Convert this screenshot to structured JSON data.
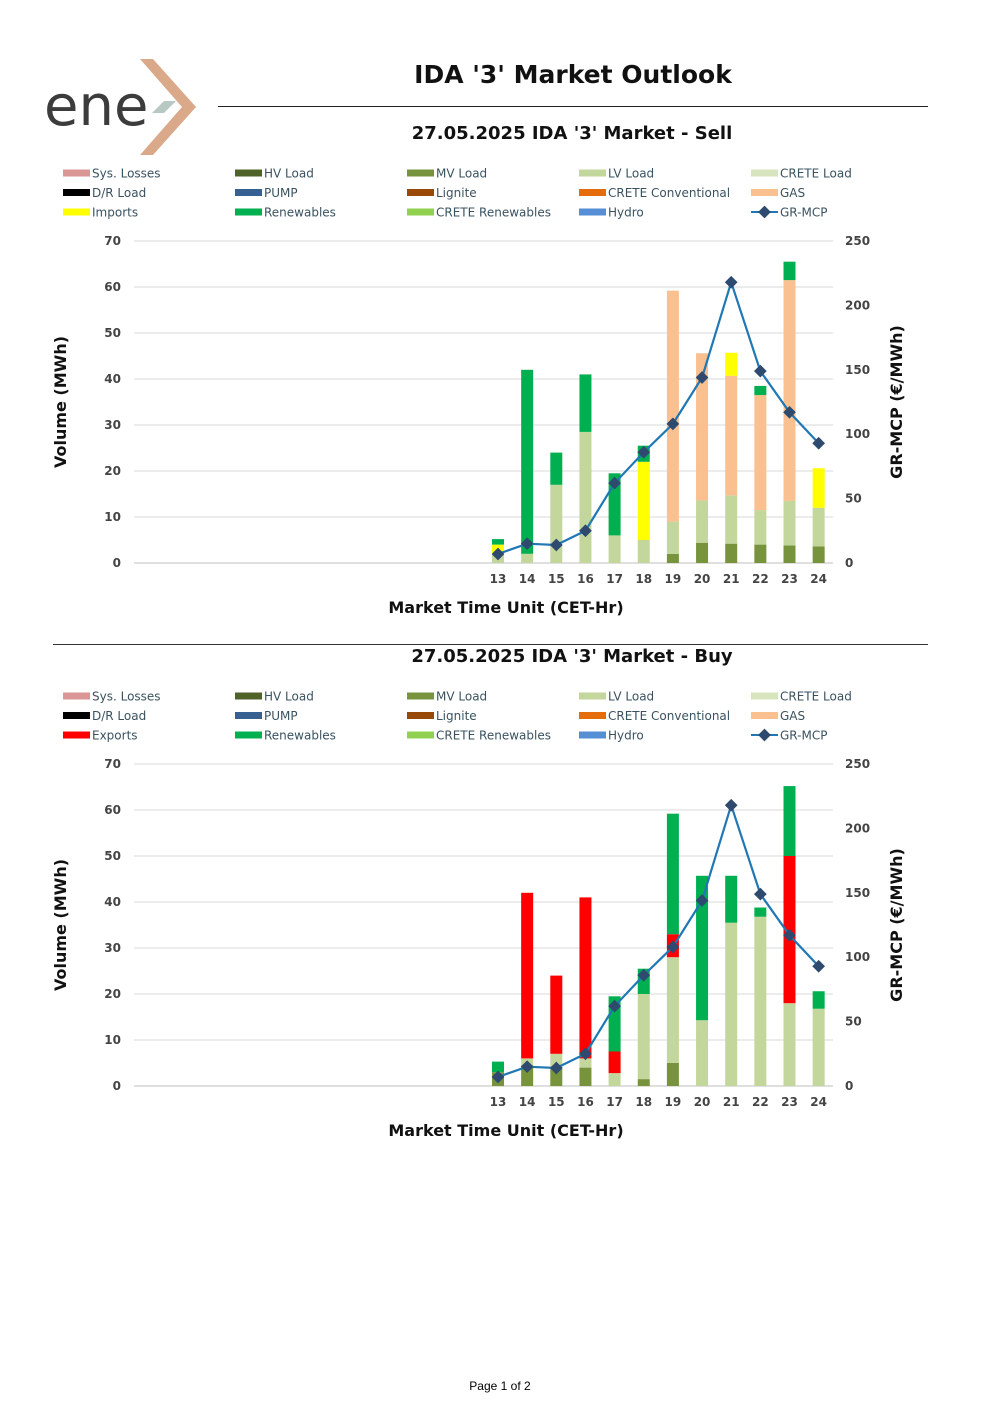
{
  "brand": {
    "logo_text": "ene",
    "accent_color": "#d9a98a",
    "text_color": "#3c3c3c"
  },
  "header": {
    "title": "IDA '3' Market Outlook"
  },
  "footer": {
    "page": "Page 1 of 2"
  },
  "chart_data": [
    {
      "type": "bar",
      "stacked": true,
      "title": "27.05.2025  IDA '3' Market - Sell",
      "xlabel": "Market Time Unit (CET-Hr)",
      "ylabel": "Volume (MWh)",
      "y2label": "GR-MCP (€/MWh)",
      "ylim": [
        0,
        70
      ],
      "yticks": [
        0,
        10,
        20,
        30,
        40,
        50,
        60,
        70
      ],
      "y2lim": [
        0,
        250
      ],
      "y2ticks": [
        0,
        50,
        100,
        150,
        200,
        250
      ],
      "categories": [
        "13",
        "14",
        "15",
        "16",
        "17",
        "18",
        "19",
        "20",
        "21",
        "22",
        "23",
        "24"
      ],
      "legend": [
        {
          "name": "Sys. Losses",
          "color": "#d99694",
          "kind": "bar"
        },
        {
          "name": "HV Load",
          "color": "#4f6228",
          "kind": "bar"
        },
        {
          "name": "MV Load",
          "color": "#77933c",
          "kind": "bar"
        },
        {
          "name": "LV Load",
          "color": "#c3d69b",
          "kind": "bar"
        },
        {
          "name": "CRETE Load",
          "color": "#d7e4bd",
          "kind": "bar"
        },
        {
          "name": "D/R Load",
          "color": "#000000",
          "kind": "bar"
        },
        {
          "name": "PUMP",
          "color": "#376092",
          "kind": "bar"
        },
        {
          "name": "Lignite",
          "color": "#984807",
          "kind": "bar"
        },
        {
          "name": "CRETE Conventional",
          "color": "#e46c0a",
          "kind": "bar"
        },
        {
          "name": "GAS",
          "color": "#fac090",
          "kind": "bar"
        },
        {
          "name": "Imports",
          "color": "#ffff00",
          "kind": "bar"
        },
        {
          "name": "Renewables",
          "color": "#00b050",
          "kind": "bar"
        },
        {
          "name": "CRETE Renewables",
          "color": "#92d050",
          "kind": "bar"
        },
        {
          "name": "Hydro",
          "color": "#558ed5",
          "kind": "bar"
        },
        {
          "name": "GR-MCP",
          "color": "#1f77b4",
          "kind": "line"
        }
      ],
      "series": [
        {
          "name": "MV Load",
          "color": "#77933c",
          "values": [
            0,
            0,
            0,
            0,
            0,
            0,
            2,
            4.4,
            4.2,
            4,
            3.8,
            3.6
          ]
        },
        {
          "name": "LV Load",
          "color": "#c3d69b",
          "values": [
            2,
            2,
            17,
            28.5,
            6,
            5,
            7,
            9.2,
            10.5,
            7.5,
            9.7,
            8.4
          ]
        },
        {
          "name": "GAS",
          "color": "#fac090",
          "values": [
            0,
            0,
            0,
            0,
            0,
            0,
            50.2,
            32,
            26,
            25,
            48,
            0
          ]
        },
        {
          "name": "Imports",
          "color": "#ffff00",
          "values": [
            2,
            0,
            0,
            0,
            0,
            17,
            0,
            0,
            5,
            0,
            0,
            8.6
          ]
        },
        {
          "name": "Renewables",
          "color": "#00b050",
          "values": [
            1.2,
            40,
            7,
            12.5,
            13.5,
            3.5,
            0,
            0,
            0,
            2,
            4,
            0
          ]
        }
      ],
      "line": {
        "name": "GR-MCP",
        "color": "#1f77b4",
        "marker_color": "#2e4a6e",
        "values": [
          7,
          15,
          14,
          25,
          62,
          86,
          108,
          144,
          218,
          149,
          117,
          93
        ]
      }
    },
    {
      "type": "bar",
      "stacked": true,
      "title": "27.05.2025  IDA '3' Market - Buy",
      "xlabel": "Market Time Unit (CET-Hr)",
      "ylabel": "Volume (MWh)",
      "y2label": "GR-MCP (€/MWh)",
      "ylim": [
        0,
        70
      ],
      "yticks": [
        0,
        10,
        20,
        30,
        40,
        50,
        60,
        70
      ],
      "y2lim": [
        0,
        250
      ],
      "y2ticks": [
        0,
        50,
        100,
        150,
        200,
        250
      ],
      "categories": [
        "13",
        "14",
        "15",
        "16",
        "17",
        "18",
        "19",
        "20",
        "21",
        "22",
        "23",
        "24"
      ],
      "legend": [
        {
          "name": "Sys. Losses",
          "color": "#d99694",
          "kind": "bar"
        },
        {
          "name": "HV Load",
          "color": "#4f6228",
          "kind": "bar"
        },
        {
          "name": "MV Load",
          "color": "#77933c",
          "kind": "bar"
        },
        {
          "name": "LV Load",
          "color": "#c3d69b",
          "kind": "bar"
        },
        {
          "name": "CRETE Load",
          "color": "#d7e4bd",
          "kind": "bar"
        },
        {
          "name": "D/R Load",
          "color": "#000000",
          "kind": "bar"
        },
        {
          "name": "PUMP",
          "color": "#376092",
          "kind": "bar"
        },
        {
          "name": "Lignite",
          "color": "#984807",
          "kind": "bar"
        },
        {
          "name": "CRETE Conventional",
          "color": "#e46c0a",
          "kind": "bar"
        },
        {
          "name": "GAS",
          "color": "#fac090",
          "kind": "bar"
        },
        {
          "name": "Exports",
          "color": "#ff0000",
          "kind": "bar"
        },
        {
          "name": "Renewables",
          "color": "#00b050",
          "kind": "bar"
        },
        {
          "name": "CRETE Renewables",
          "color": "#92d050",
          "kind": "bar"
        },
        {
          "name": "Hydro",
          "color": "#558ed5",
          "kind": "bar"
        },
        {
          "name": "GR-MCP",
          "color": "#1f77b4",
          "kind": "line"
        }
      ],
      "series": [
        {
          "name": "MV Load",
          "color": "#77933c",
          "values": [
            3,
            4.5,
            4,
            4,
            0,
            1.5,
            5,
            0,
            0,
            0,
            0,
            0
          ]
        },
        {
          "name": "LV Load",
          "color": "#c3d69b",
          "values": [
            0,
            1.5,
            3,
            2,
            2.8,
            18.5,
            23,
            14.3,
            35.5,
            36.8,
            18,
            16.8
          ]
        },
        {
          "name": "Exports",
          "color": "#ff0000",
          "values": [
            0,
            36,
            17,
            35,
            4.7,
            0,
            5,
            0,
            0,
            0,
            32,
            0
          ]
        },
        {
          "name": "Renewables",
          "color": "#00b050",
          "values": [
            2.3,
            0,
            0,
            0,
            12,
            5.5,
            26.2,
            31.4,
            10.2,
            2,
            15.2,
            3.8
          ]
        }
      ],
      "line": {
        "name": "GR-MCP",
        "color": "#1f77b4",
        "marker_color": "#2e4a6e",
        "values": [
          7,
          15,
          14,
          25,
          62,
          86,
          108,
          144,
          218,
          149,
          117,
          93
        ]
      }
    }
  ]
}
